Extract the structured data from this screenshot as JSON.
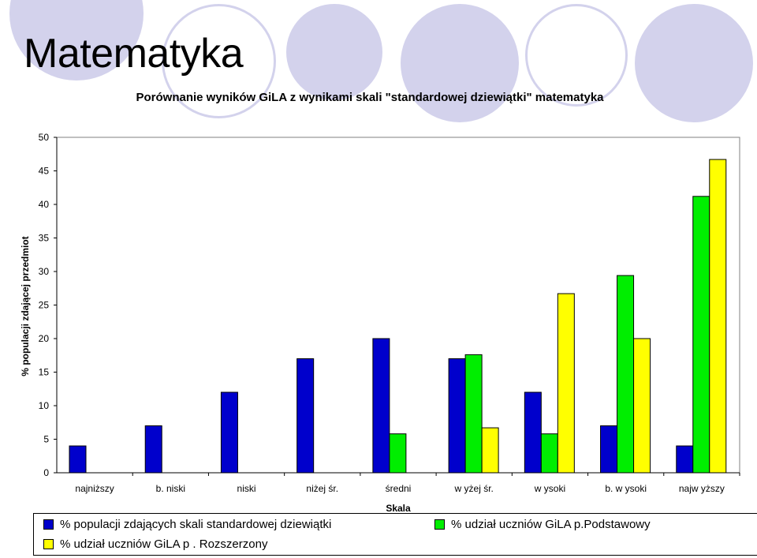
{
  "slide_title": "Matematyka",
  "colors": {
    "series1": "#0000cc",
    "series2": "#00ee00",
    "series3": "#ffff00",
    "decor": "#d3d2ec"
  },
  "chart_data": {
    "type": "bar",
    "title": "Porównanie wyników GiLA z wynikami skali \"standardowej dziewiątki\" matematyka",
    "xlabel": "Skala",
    "ylabel": "% populacji zdającej przedmiot",
    "ylim": [
      0,
      50
    ],
    "yticks": [
      0,
      5,
      10,
      15,
      20,
      25,
      30,
      35,
      40,
      45,
      50
    ],
    "grid": false,
    "legend_position": "bottom",
    "categories": [
      "najniższy",
      "b. niski",
      "niski",
      "niżej śr.",
      "średni",
      "w yżej śr.",
      "w ysoki",
      "b. w ysoki",
      "najw yższy"
    ],
    "series": [
      {
        "name": "% populacji zdających skali standardowej dziewiątki",
        "values": [
          4,
          7,
          12,
          17,
          20,
          17,
          12,
          7,
          4
        ]
      },
      {
        "name": "% udział uczniów GiLA p.Podstawowy",
        "values": [
          null,
          null,
          null,
          null,
          5.8,
          17.6,
          5.8,
          29.4,
          41.2
        ]
      },
      {
        "name": "% udział uczniów GiLA p . Rozszerzony",
        "values": [
          null,
          null,
          null,
          null,
          null,
          6.7,
          26.7,
          20,
          46.7
        ]
      }
    ]
  }
}
